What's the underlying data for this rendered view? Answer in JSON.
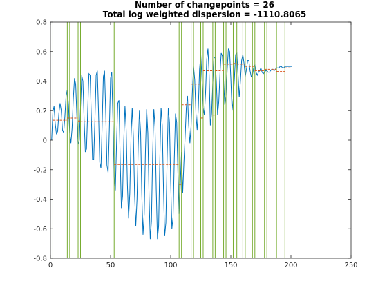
{
  "chart_data": {
    "type": "line",
    "title_lines": [
      "Number of changepoints = 26",
      "Total log weighted dispersion = -1110.8065"
    ],
    "xlabel": "",
    "ylabel": "",
    "xlim": [
      0,
      250
    ],
    "ylim": [
      -0.8,
      0.8
    ],
    "xticks": [
      0,
      50,
      100,
      150,
      200,
      250
    ],
    "yticks": [
      -0.8,
      -0.6,
      -0.4,
      -0.2,
      0,
      0.2,
      0.4,
      0.6,
      0.8
    ],
    "xtick_labels": [
      "0",
      "50",
      "100",
      "150",
      "200",
      "250"
    ],
    "ytick_labels": [
      "-0.8",
      "-0.6",
      "-0.4",
      "-0.2",
      "0",
      "0.2",
      "0.4",
      "0.6",
      "0.8"
    ],
    "grid": false,
    "series": [
      {
        "role": "signal",
        "color": "#0072BD",
        "x": [
          1,
          2,
          3,
          4,
          5,
          6,
          7,
          8,
          9,
          10,
          11,
          12,
          13,
          14,
          15,
          16,
          17,
          18,
          19,
          20,
          21,
          22,
          23,
          24,
          25,
          26,
          27,
          28,
          29,
          30,
          31,
          32,
          33,
          34,
          35,
          36,
          37,
          38,
          39,
          40,
          41,
          42,
          43,
          44,
          45,
          46,
          47,
          48,
          49,
          50,
          51,
          52,
          53,
          54,
          55,
          56,
          57,
          58,
          59,
          60,
          61,
          62,
          63,
          64,
          65,
          66,
          67,
          68,
          69,
          70,
          71,
          72,
          73,
          74,
          75,
          76,
          77,
          78,
          79,
          80,
          81,
          82,
          83,
          84,
          85,
          86,
          87,
          88,
          89,
          90,
          91,
          92,
          93,
          94,
          95,
          96,
          97,
          98,
          99,
          100,
          101,
          102,
          103,
          104,
          105,
          106,
          107,
          108,
          109,
          110,
          111,
          112,
          113,
          114,
          115,
          116,
          117,
          118,
          119,
          120,
          121,
          122,
          123,
          124,
          125,
          126,
          127,
          128,
          129,
          130,
          131,
          132,
          133,
          134,
          135,
          136,
          137,
          138,
          139,
          140,
          141,
          142,
          143,
          144,
          145,
          146,
          147,
          148,
          149,
          150,
          151,
          152,
          153,
          154,
          155,
          156,
          157,
          158,
          159,
          160,
          161,
          162,
          163,
          164,
          165,
          166,
          167,
          168,
          169,
          170,
          171,
          172,
          173,
          174,
          175,
          176,
          177,
          178,
          179,
          180,
          181,
          182,
          183,
          184,
          185,
          186,
          187,
          188,
          189,
          190,
          191,
          192,
          193,
          194,
          195,
          196,
          197,
          198,
          199,
          200,
          201
        ],
        "y": [
          0.0,
          0.19,
          0.23,
          0.11,
          0.04,
          0.06,
          0.18,
          0.25,
          0.2,
          0.07,
          0.05,
          0.16,
          0.3,
          0.34,
          0.24,
          0.05,
          -0.02,
          0.08,
          0.28,
          0.42,
          0.38,
          0.16,
          -0.03,
          0.0,
          0.22,
          0.44,
          0.4,
          0.14,
          -0.08,
          -0.06,
          0.2,
          0.45,
          0.44,
          0.16,
          -0.13,
          -0.13,
          0.14,
          0.44,
          0.47,
          0.19,
          -0.15,
          -0.19,
          0.1,
          0.43,
          0.47,
          0.18,
          -0.17,
          -0.22,
          0.08,
          0.42,
          0.46,
          0.13,
          -0.25,
          -0.34,
          -0.02,
          0.25,
          0.27,
          -0.13,
          -0.46,
          -0.38,
          0.0,
          0.23,
          0.07,
          -0.3,
          -0.53,
          -0.36,
          0.02,
          0.22,
          0.02,
          -0.37,
          -0.58,
          -0.4,
          -0.04,
          0.2,
          0.05,
          -0.37,
          -0.64,
          -0.5,
          -0.08,
          0.21,
          0.05,
          -0.38,
          -0.67,
          -0.55,
          -0.1,
          0.21,
          0.09,
          -0.34,
          -0.67,
          -0.58,
          -0.12,
          0.22,
          0.1,
          -0.32,
          -0.65,
          -0.56,
          -0.14,
          0.22,
          0.12,
          -0.28,
          -0.6,
          -0.52,
          -0.13,
          0.18,
          0.12,
          -0.22,
          -0.5,
          -0.3,
          -0.08,
          -0.36,
          -0.15,
          0.02,
          0.22,
          0.3,
          0.1,
          -0.02,
          0.1,
          0.32,
          0.5,
          0.41,
          0.18,
          0.07,
          0.22,
          0.48,
          0.58,
          0.42,
          0.22,
          0.17,
          0.32,
          0.55,
          0.62,
          0.44,
          0.1,
          0.18,
          0.38,
          0.56,
          0.56,
          0.39,
          0.17,
          0.26,
          0.45,
          0.59,
          0.57,
          0.4,
          0.24,
          0.3,
          0.48,
          0.62,
          0.6,
          0.42,
          0.2,
          0.28,
          0.42,
          0.58,
          0.59,
          0.45,
          0.29,
          0.4,
          0.54,
          0.58,
          0.52,
          0.43,
          0.48,
          0.54,
          0.54,
          0.47,
          0.43,
          0.44,
          0.49,
          0.51,
          0.46,
          0.44,
          0.46,
          0.47,
          0.49,
          0.46,
          0.45,
          0.46,
          0.47,
          0.47,
          0.46,
          0.46,
          0.47,
          0.48,
          0.48,
          0.47,
          0.48,
          0.49,
          0.49,
          0.49,
          0.5,
          0.5,
          0.49,
          0.49,
          0.5,
          0.5,
          0.5,
          0.5,
          0.5,
          0.5,
          0.5
        ]
      },
      {
        "role": "segment-means",
        "color": "#D95319",
        "line_style": "dashed",
        "segments": [
          {
            "x0": 2,
            "x1": 14,
            "y": 0.135
          },
          {
            "x0": 14,
            "x1": 23,
            "y": 0.15
          },
          {
            "x0": 23,
            "x1": 25,
            "y": 0.13
          },
          {
            "x0": 25,
            "x1": 53,
            "y": 0.125
          },
          {
            "x0": 53,
            "x1": 107,
            "y": -0.165
          },
          {
            "x0": 107,
            "x1": 109,
            "y": -0.3
          },
          {
            "x0": 109,
            "x1": 117,
            "y": 0.24
          },
          {
            "x0": 117,
            "x1": 125,
            "y": 0.38
          },
          {
            "x0": 125,
            "x1": 127,
            "y": 0.15
          },
          {
            "x0": 127,
            "x1": 135,
            "y": 0.47
          },
          {
            "x0": 135,
            "x1": 137,
            "y": 0.17
          },
          {
            "x0": 137,
            "x1": 144,
            "y": 0.47
          },
          {
            "x0": 144,
            "x1": 152,
            "y": 0.515
          },
          {
            "x0": 152,
            "x1": 155,
            "y": 0.52
          },
          {
            "x0": 155,
            "x1": 162,
            "y": 0.515
          },
          {
            "x0": 162,
            "x1": 170,
            "y": 0.5
          },
          {
            "x0": 170,
            "x1": 178,
            "y": 0.47
          },
          {
            "x0": 178,
            "x1": 188,
            "y": 0.48
          },
          {
            "x0": 188,
            "x1": 195,
            "y": 0.465
          },
          {
            "x0": 195,
            "x1": 201,
            "y": 0.49
          }
        ]
      }
    ],
    "changepoints": {
      "color": "#77AC30",
      "x": [
        2,
        14,
        16,
        23,
        25,
        53,
        107,
        109,
        117,
        119,
        125,
        127,
        135,
        137,
        144,
        146,
        152,
        155,
        160,
        162,
        168,
        170,
        178,
        180,
        188,
        195
      ]
    }
  }
}
